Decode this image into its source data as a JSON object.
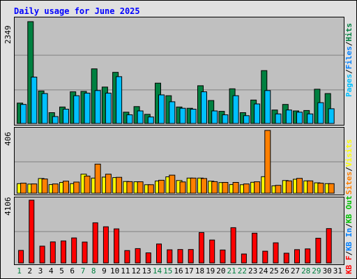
{
  "title": "Daily usage for June 2025",
  "colors": {
    "hits": "#008040",
    "files": "#00c0ff",
    "pages": "#00c0ff",
    "visits": "#ffff00",
    "sites": "#ff8000",
    "kb_in": "#0080ff",
    "kb_out": "#00c000",
    "kb_f": "#ff0000",
    "weekend_label": "#008040",
    "weekday_label": "#000000"
  },
  "legends": {
    "top": [
      {
        "text": "Pages",
        "color": "#00c0ff"
      },
      {
        "text": "/",
        "color": "#000000"
      },
      {
        "text": "Files",
        "color": "#0080ff"
      },
      {
        "text": "/",
        "color": "#000000"
      },
      {
        "text": "Hits",
        "color": "#008040"
      }
    ],
    "middle": [
      {
        "text": "Sites",
        "color": "#ff8000"
      },
      {
        "text": "/",
        "color": "#000000"
      },
      {
        "text": "Visits",
        "color": "#ffff00"
      }
    ],
    "bottom": [
      {
        "text": "KB F",
        "color": "#ff0000"
      },
      {
        "text": "/",
        "color": "#000000"
      },
      {
        "text": "KB In",
        "color": "#0080ff"
      },
      {
        "text": "/",
        "color": "#000000"
      },
      {
        "text": "KB Out",
        "color": "#00c000"
      }
    ]
  },
  "chart_data": [
    {
      "type": "bar",
      "panel": "hits-files",
      "ymax_label": "2349",
      "ylim": [
        0,
        2349
      ],
      "categories": [
        "1",
        "2",
        "3",
        "4",
        "5",
        "6",
        "7",
        "8",
        "9",
        "10",
        "11",
        "12",
        "13",
        "14",
        "15",
        "16",
        "17",
        "18",
        "19",
        "20",
        "21",
        "22",
        "23",
        "24",
        "25",
        "26",
        "27",
        "28",
        "29",
        "30",
        "31"
      ],
      "series": [
        {
          "key": "hits",
          "values": [
            470,
            2349,
            750,
            250,
            380,
            730,
            740,
            1260,
            840,
            1180,
            260,
            390,
            210,
            930,
            640,
            380,
            350,
            870,
            530,
            280,
            800,
            250,
            540,
            1220,
            310,
            440,
            290,
            300,
            790,
            690,
            0
          ]
        },
        {
          "key": "files",
          "values": [
            440,
            1070,
            690,
            160,
            330,
            640,
            700,
            760,
            700,
            1080,
            200,
            290,
            150,
            660,
            500,
            350,
            330,
            730,
            290,
            200,
            640,
            180,
            450,
            760,
            220,
            310,
            260,
            220,
            480,
            340,
            0
          ]
        }
      ]
    },
    {
      "type": "bar",
      "panel": "visits-sites",
      "ymax_label": "406",
      "ylim": [
        0,
        406
      ],
      "categories": [
        "1",
        "2",
        "3",
        "4",
        "5",
        "6",
        "7",
        "8",
        "9",
        "10",
        "11",
        "12",
        "13",
        "14",
        "15",
        "16",
        "17",
        "18",
        "19",
        "20",
        "21",
        "22",
        "23",
        "24",
        "25",
        "26",
        "27",
        "28",
        "29",
        "30",
        "31"
      ],
      "series": [
        {
          "key": "visits",
          "values": [
            62,
            59,
            95,
            56,
            70,
            62,
            123,
            98,
            104,
            101,
            76,
            74,
            55,
            79,
            106,
            82,
            98,
            98,
            78,
            69,
            56,
            55,
            71,
            107,
            48,
            82,
            90,
            80,
            67,
            62,
            0
          ]
        },
        {
          "key": "sites",
          "values": [
            65,
            60,
            92,
            60,
            78,
            72,
            111,
            188,
            123,
            103,
            75,
            74,
            55,
            84,
            117,
            73,
            98,
            95,
            75,
            70,
            70,
            60,
            74,
            406,
            51,
            80,
            96,
            80,
            65,
            62,
            0
          ]
        }
      ]
    },
    {
      "type": "bar",
      "panel": "kbytes",
      "ymax_label": "4106",
      "ylim": [
        0,
        4106
      ],
      "categories": [
        "1",
        "2",
        "3",
        "4",
        "5",
        "6",
        "7",
        "8",
        "9",
        "10",
        "11",
        "12",
        "13",
        "14",
        "15",
        "16",
        "17",
        "18",
        "19",
        "20",
        "21",
        "22",
        "23",
        "24",
        "25",
        "26",
        "27",
        "28",
        "29",
        "30",
        "31"
      ],
      "series": [
        {
          "key": "kb_f",
          "values": [
            820,
            4106,
            1100,
            1380,
            1440,
            1640,
            1370,
            2630,
            2370,
            2230,
            810,
            940,
            660,
            1240,
            860,
            880,
            880,
            1990,
            1500,
            850,
            2310,
            590,
            1950,
            770,
            1320,
            640,
            870,
            920,
            1620,
            2250,
            0
          ]
        }
      ]
    }
  ],
  "x_axis": {
    "labels": [
      "1",
      "2",
      "3",
      "4",
      "5",
      "6",
      "7",
      "8",
      "9",
      "10",
      "11",
      "12",
      "13",
      "14",
      "15",
      "16",
      "17",
      "18",
      "19",
      "20",
      "21",
      "22",
      "23",
      "24",
      "25",
      "26",
      "27",
      "28",
      "29",
      "30",
      "31"
    ],
    "weekend": [
      1,
      7,
      8,
      14,
      15,
      21,
      22,
      28,
      29
    ]
  }
}
